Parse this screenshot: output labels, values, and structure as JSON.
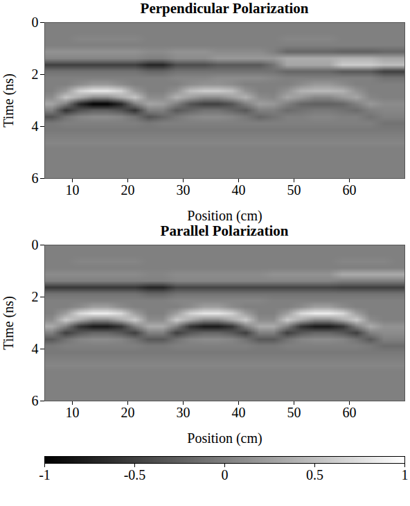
{
  "chart_data": [
    {
      "type": "heatmap",
      "title": "Perpendicular Polarization",
      "x_label": "Position (cm)",
      "y_label": "Time (ns)",
      "xlim": [
        5,
        70
      ],
      "ylim": [
        0,
        6
      ],
      "xticks": [
        10,
        20,
        30,
        40,
        50,
        60
      ],
      "yticks": [
        0,
        2,
        4,
        6
      ],
      "colorbar_range": [
        -1,
        1
      ],
      "cells": [
        [
          0,
          0,
          0,
          0,
          0,
          0,
          0,
          0,
          0,
          0,
          0,
          0,
          0,
          0,
          0,
          0,
          0,
          0,
          0,
          0,
          0,
          0,
          0,
          0,
          0,
          0
        ],
        [
          0,
          0,
          0,
          0,
          0,
          0,
          0,
          0,
          0,
          0,
          0,
          0,
          0,
          0,
          0,
          0,
          0,
          0,
          0,
          0,
          0,
          0,
          0,
          0,
          0,
          0
        ],
        [
          0,
          0,
          0.05,
          0.05,
          0.05,
          0.05,
          0.05,
          0,
          0,
          0,
          0,
          0,
          0,
          0,
          0,
          0,
          0,
          0.05,
          0.05,
          0.05,
          0.05,
          0,
          0,
          0,
          0,
          0
        ],
        [
          0,
          0,
          0,
          0,
          0,
          0,
          0,
          0,
          0,
          0,
          0,
          0,
          0,
          0,
          0,
          0,
          0,
          0,
          0,
          0,
          0,
          0,
          0,
          0,
          0,
          0
        ],
        [
          0.15,
          0.15,
          0.15,
          0.15,
          0.15,
          0.15,
          0.15,
          0.1,
          0.1,
          0.15,
          0.15,
          0.15,
          0.1,
          0.1,
          0.1,
          0.1,
          0,
          -0.2,
          -0.2,
          -0.2,
          -0.2,
          -0.25,
          -0.25,
          -0.25,
          -0.2,
          -0.2
        ],
        [
          0.05,
          0.05,
          0.05,
          0.05,
          0.05,
          0.05,
          0.05,
          0,
          0,
          0.1,
          0.1,
          0.1,
          0.2,
          0.2,
          0.2,
          0.2,
          0.2,
          0.35,
          0.35,
          0.35,
          0.35,
          0.4,
          0.4,
          0.4,
          0.3,
          0.3
        ],
        [
          -0.5,
          -0.5,
          -0.5,
          -0.5,
          -0.5,
          -0.5,
          -0.5,
          -0.7,
          -0.7,
          -0.4,
          -0.4,
          -0.4,
          -0.3,
          -0.3,
          -0.3,
          -0.3,
          -0.1,
          0.3,
          0.3,
          0.3,
          0.3,
          0.6,
          0.6,
          0.6,
          0.5,
          0.5
        ],
        [
          -0.1,
          -0.1,
          -0.1,
          -0.1,
          -0.1,
          -0.1,
          -0.1,
          -0.2,
          -0.2,
          -0.1,
          -0.1,
          -0.1,
          -0.1,
          -0.1,
          -0.1,
          -0.1,
          -0.1,
          -0.2,
          -0.2,
          -0.2,
          -0.2,
          -0.3,
          -0.3,
          -0.3,
          -0.5,
          -0.5
        ],
        [
          0,
          0,
          0,
          0,
          0,
          0,
          0,
          0,
          0,
          0.05,
          0.05,
          0.05,
          0.1,
          0.1,
          0.1,
          0.1,
          0.05,
          0,
          0,
          0,
          0,
          0,
          0,
          0,
          -0.1,
          -0.1
        ],
        [
          0,
          0,
          0.1,
          0.2,
          0.2,
          0.1,
          0,
          0,
          0,
          0,
          0.1,
          0.15,
          0.15,
          0.1,
          0,
          0,
          0,
          0,
          0.1,
          0.2,
          0.2,
          0.1,
          0,
          0,
          0,
          0
        ],
        [
          0,
          0.2,
          0.65,
          0.8,
          0.8,
          0.65,
          0.2,
          0,
          0,
          0.15,
          0.5,
          0.6,
          0.6,
          0.5,
          0.15,
          0,
          0,
          0.15,
          0.4,
          0.45,
          0.45,
          0.4,
          0.15,
          0,
          0,
          0
        ],
        [
          0.1,
          0.55,
          0.35,
          0.1,
          0.1,
          0.35,
          0.55,
          0.1,
          0.1,
          0.4,
          0.25,
          0.1,
          0.1,
          0.25,
          0.4,
          0.1,
          0.05,
          0.3,
          0.2,
          0.05,
          0.05,
          0.2,
          0.3,
          0.05,
          0,
          0
        ],
        [
          0.3,
          0,
          -0.7,
          -1,
          -1,
          -0.7,
          0,
          0.3,
          0.25,
          0,
          -0.35,
          -0.5,
          -0.5,
          -0.35,
          0,
          0.25,
          0.2,
          0,
          -0.2,
          -0.25,
          -0.25,
          -0.2,
          0,
          0.2,
          0.1,
          0.1
        ],
        [
          0,
          -0.6,
          -0.35,
          -0.25,
          -0.25,
          -0.35,
          -0.6,
          0,
          0,
          -0.3,
          -0.2,
          -0.1,
          -0.1,
          -0.2,
          -0.3,
          0,
          0,
          -0.15,
          -0.1,
          -0.05,
          -0.05,
          -0.1,
          -0.15,
          0,
          0.05,
          0.05
        ],
        [
          -0.35,
          -0.1,
          0.05,
          0.1,
          0.1,
          0.05,
          -0.1,
          -0.35,
          -0.2,
          -0.05,
          0.05,
          0.1,
          0.1,
          0.05,
          -0.05,
          -0.2,
          -0.1,
          0,
          0,
          0.05,
          0.05,
          0,
          0,
          -0.1,
          0,
          0
        ],
        [
          -0.05,
          0,
          0,
          0,
          0,
          0,
          0,
          -0.05,
          0,
          0,
          0,
          0,
          0,
          0,
          0,
          0,
          0,
          0,
          0,
          0,
          0,
          0,
          0,
          0,
          -0.1,
          -0.1
        ],
        [
          -0.05,
          -0.05,
          -0.05,
          -0.05,
          -0.05,
          -0.05,
          -0.05,
          -0.05,
          -0.05,
          -0.05,
          -0.05,
          -0.05,
          -0.05,
          -0.05,
          -0.05,
          -0.05,
          -0.05,
          -0.05,
          -0.05,
          -0.05,
          -0.05,
          -0.05,
          -0.05,
          -0.05,
          -0.05,
          -0.05
        ],
        [
          0,
          0,
          0,
          0,
          0,
          0,
          0,
          0,
          0,
          0,
          0,
          0,
          0,
          0,
          0,
          0,
          0,
          0,
          0,
          0,
          0,
          0,
          0,
          0,
          0,
          0
        ],
        [
          0.05,
          0.05,
          0.05,
          0.05,
          0.05,
          0.05,
          0.05,
          0.05,
          0.05,
          0.05,
          0.05,
          0.05,
          0.05,
          0.05,
          0.05,
          0.05,
          0.05,
          0.05,
          0.05,
          0.05,
          0.05,
          0.05,
          0.05,
          0.05,
          0.05,
          0.05
        ],
        [
          0,
          0,
          0,
          0,
          0,
          0,
          0,
          0,
          0,
          0,
          0,
          0,
          0,
          0,
          0,
          0,
          0,
          0,
          0,
          0,
          0,
          0,
          0,
          0,
          0,
          0
        ],
        [
          0,
          0,
          0,
          0,
          0,
          0,
          0,
          0,
          0,
          0,
          0,
          0,
          0,
          0,
          0,
          0,
          0,
          0,
          0,
          0,
          0,
          0,
          0,
          0,
          0,
          0
        ],
        [
          0,
          0,
          0,
          0,
          0,
          0,
          0,
          0,
          0,
          0,
          0,
          0,
          0,
          0,
          0,
          0,
          0,
          0,
          0,
          0,
          0,
          0,
          0,
          0,
          0,
          0
        ],
        [
          0,
          0,
          0,
          0,
          0,
          0,
          0,
          0,
          0,
          0,
          0,
          0,
          0,
          0,
          0,
          0,
          0,
          0,
          0,
          0,
          0,
          0,
          0,
          0,
          0,
          0
        ],
        [
          0,
          0,
          0,
          0,
          0,
          0,
          0,
          0,
          0,
          0,
          0,
          0,
          0,
          0,
          0,
          0,
          0,
          0,
          0,
          0,
          0,
          0,
          0,
          0,
          0,
          0
        ]
      ]
    },
    {
      "type": "heatmap",
      "title": "Parallel Polarization",
      "x_label": "Position (cm)",
      "y_label": "Time (ns)",
      "xlim": [
        5,
        70
      ],
      "ylim": [
        0,
        6
      ],
      "xticks": [
        10,
        20,
        30,
        40,
        50,
        60
      ],
      "yticks": [
        0,
        2,
        4,
        6
      ],
      "colorbar_range": [
        -1,
        1
      ],
      "colorbar_ticks": [
        -1,
        -0.5,
        0,
        0.5,
        1
      ],
      "cells": [
        [
          0,
          0,
          0,
          0,
          0,
          0,
          0,
          0,
          0,
          0,
          0,
          0,
          0,
          0,
          0,
          0,
          0,
          0,
          0,
          0,
          0,
          0,
          0,
          0,
          0,
          0
        ],
        [
          0,
          0,
          0,
          0,
          0,
          0,
          0,
          0,
          0,
          0,
          0,
          0,
          0,
          0,
          0,
          0,
          0,
          0,
          0,
          0,
          0,
          0,
          0,
          0,
          0,
          0
        ],
        [
          0,
          0,
          0.05,
          0.05,
          0.05,
          0.05,
          0.05,
          0,
          0,
          0,
          0,
          0,
          0,
          0,
          0,
          0,
          0,
          0,
          0,
          0,
          0,
          0.05,
          0.05,
          0.05,
          0.05,
          0
        ],
        [
          0,
          0,
          0,
          0,
          0,
          0,
          0,
          0,
          0,
          0,
          0,
          0,
          0,
          0,
          0,
          0,
          0,
          0,
          0,
          0,
          0,
          0,
          0,
          0,
          0,
          0
        ],
        [
          0.1,
          0.1,
          0.1,
          0.1,
          0.1,
          0.1,
          0.1,
          0.05,
          0.05,
          0.1,
          0.1,
          0.1,
          0.1,
          0.1,
          0.1,
          0.1,
          0.15,
          0.15,
          0.15,
          0.15,
          0.15,
          0.35,
          0.35,
          0.35,
          0.35,
          0.35
        ],
        [
          0,
          0,
          0,
          0,
          0,
          0,
          0,
          0,
          0,
          0.05,
          0.05,
          0.05,
          0.05,
          0.05,
          0.05,
          0.05,
          0.05,
          0.05,
          0.05,
          0.05,
          0.05,
          0,
          0,
          0,
          0,
          0
        ],
        [
          -0.55,
          -0.55,
          -0.55,
          -0.55,
          -0.55,
          -0.55,
          -0.55,
          -0.7,
          -0.7,
          -0.45,
          -0.45,
          -0.45,
          -0.45,
          -0.45,
          -0.45,
          -0.45,
          -0.45,
          -0.45,
          -0.45,
          -0.45,
          -0.45,
          -0.5,
          -0.5,
          -0.5,
          -0.5,
          -0.5
        ],
        [
          -0.1,
          -0.1,
          -0.1,
          -0.1,
          -0.1,
          -0.1,
          -0.1,
          -0.2,
          -0.2,
          -0.1,
          -0.1,
          -0.1,
          -0.1,
          -0.1,
          -0.1,
          -0.1,
          -0.1,
          -0.1,
          -0.1,
          -0.1,
          -0.1,
          -0.1,
          -0.1,
          -0.1,
          -0.1,
          -0.1
        ],
        [
          0,
          0,
          0,
          0,
          0,
          0,
          0,
          0,
          0,
          0.05,
          0.05,
          0.05,
          0.05,
          0.05,
          0.05,
          0.05,
          0,
          0,
          0,
          0,
          0,
          0,
          0,
          0,
          0,
          0
        ],
        [
          0,
          0,
          0.1,
          0.25,
          0.25,
          0.1,
          0,
          0,
          0,
          0,
          0.1,
          0.25,
          0.25,
          0.1,
          0,
          0,
          0,
          0,
          0.1,
          0.25,
          0.25,
          0.1,
          0,
          0,
          0,
          0
        ],
        [
          0,
          0.25,
          0.7,
          0.85,
          0.85,
          0.7,
          0.25,
          0,
          0,
          0.25,
          0.65,
          0.8,
          0.8,
          0.65,
          0.25,
          0,
          0,
          0.25,
          0.7,
          0.85,
          0.85,
          0.7,
          0.25,
          0,
          0,
          0
        ],
        [
          0.1,
          0.6,
          0.35,
          0.1,
          0.1,
          0.35,
          0.6,
          0.1,
          0.1,
          0.6,
          0.35,
          0.1,
          0.1,
          0.35,
          0.6,
          0.1,
          0.1,
          0.6,
          0.35,
          0.1,
          0.1,
          0.35,
          0.6,
          0.1,
          0,
          0
        ],
        [
          0.35,
          0,
          -0.6,
          -0.8,
          -0.8,
          -0.6,
          0,
          0.35,
          0.35,
          0,
          -0.6,
          -0.8,
          -0.8,
          -0.6,
          0,
          0.35,
          0.35,
          0,
          -0.6,
          -0.8,
          -0.8,
          -0.6,
          0,
          0.35,
          0.15,
          0.15
        ],
        [
          0,
          -0.5,
          -0.3,
          -0.2,
          -0.2,
          -0.3,
          -0.5,
          0,
          0,
          -0.5,
          -0.3,
          -0.2,
          -0.2,
          -0.3,
          -0.5,
          0,
          0,
          -0.5,
          -0.3,
          -0.2,
          -0.2,
          -0.3,
          -0.5,
          0,
          0.1,
          0.1
        ],
        [
          -0.3,
          -0.1,
          0.05,
          0.1,
          0.1,
          0.05,
          -0.1,
          -0.3,
          -0.3,
          -0.1,
          0.05,
          0.1,
          0.1,
          0.05,
          -0.1,
          -0.3,
          -0.3,
          -0.1,
          0.05,
          0.1,
          0.1,
          0.05,
          -0.1,
          -0.3,
          0,
          0
        ],
        [
          -0.05,
          0,
          0,
          0,
          0,
          0,
          0,
          -0.05,
          -0.05,
          0,
          0,
          0,
          0,
          0,
          0,
          -0.05,
          -0.05,
          0,
          0,
          0,
          0,
          0,
          0,
          -0.05,
          -0.15,
          -0.15
        ],
        [
          -0.05,
          -0.05,
          -0.05,
          -0.05,
          -0.05,
          -0.05,
          -0.05,
          -0.05,
          -0.05,
          -0.05,
          -0.05,
          -0.05,
          -0.05,
          -0.05,
          -0.05,
          -0.05,
          -0.05,
          -0.05,
          -0.05,
          -0.05,
          -0.05,
          -0.05,
          -0.05,
          -0.05,
          -0.05,
          -0.05
        ],
        [
          0,
          0,
          0,
          0,
          0,
          0,
          0,
          0,
          0,
          0,
          0,
          0,
          0,
          0,
          0,
          0,
          0,
          0,
          0,
          0,
          0,
          0,
          0,
          0,
          0,
          0
        ],
        [
          0.05,
          0.05,
          0.05,
          0.05,
          0.05,
          0.05,
          0.05,
          0.05,
          0.05,
          0.05,
          0.05,
          0.05,
          0.05,
          0.05,
          0.05,
          0.05,
          0.05,
          0.05,
          0.05,
          0.05,
          0.05,
          0.05,
          0.05,
          0.05,
          0.05,
          0.05
        ],
        [
          0,
          0,
          0,
          0,
          0,
          0,
          0,
          0,
          0,
          0,
          0,
          0,
          0,
          0,
          0,
          0,
          0,
          0,
          0,
          0,
          0,
          0,
          0,
          0,
          0,
          0
        ],
        [
          0,
          0,
          0,
          0,
          0,
          0,
          0,
          0,
          0,
          0,
          0,
          0,
          0,
          0,
          0,
          0,
          0,
          0,
          0,
          0,
          0,
          0,
          0,
          0,
          0,
          0
        ],
        [
          0,
          0,
          0,
          0,
          0,
          0,
          0,
          0,
          0,
          0,
          0,
          0,
          0,
          0,
          0,
          0,
          0,
          0,
          0,
          0,
          0,
          0,
          0,
          0,
          0,
          0
        ],
        [
          0,
          0,
          0,
          0,
          0,
          0,
          0,
          0,
          0,
          0,
          0,
          0,
          0,
          0,
          0,
          0,
          0,
          0,
          0,
          0,
          0,
          0,
          0,
          0,
          0,
          0
        ],
        [
          0,
          0,
          0,
          0,
          0,
          0,
          0,
          0,
          0,
          0,
          0,
          0,
          0,
          0,
          0,
          0,
          0,
          0,
          0,
          0,
          0,
          0,
          0,
          0,
          0,
          0
        ]
      ]
    }
  ]
}
